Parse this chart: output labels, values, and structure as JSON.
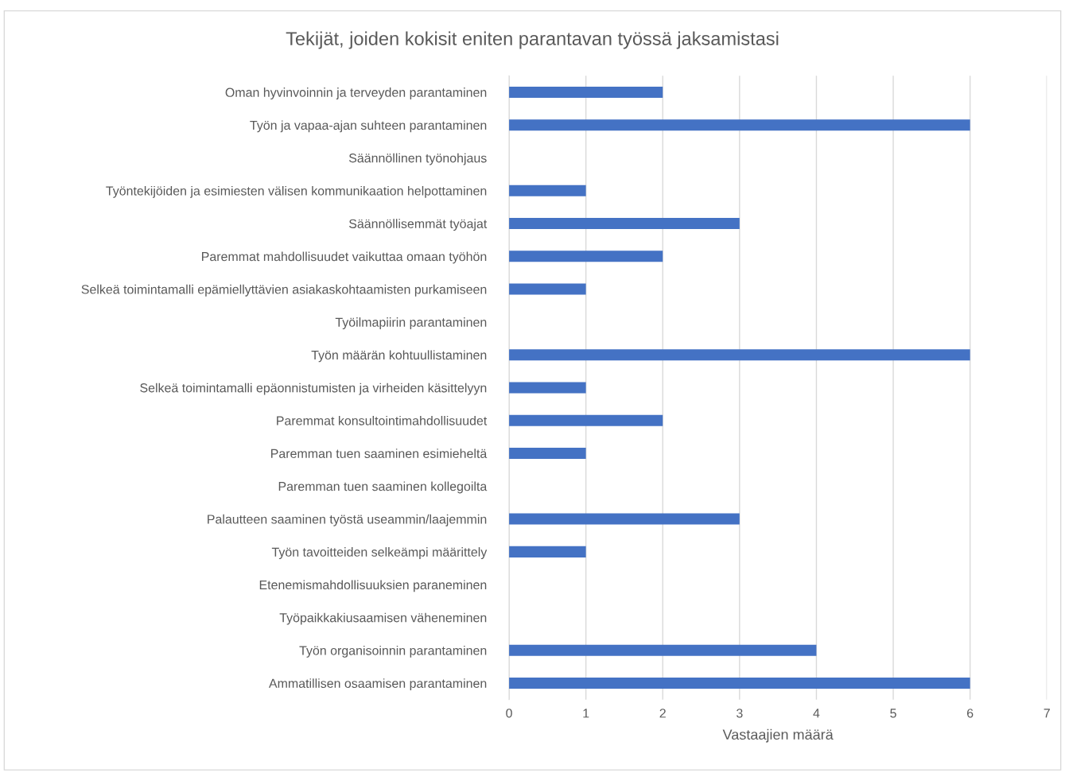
{
  "chart_data": {
    "type": "bar",
    "orientation": "horizontal",
    "title": "Tekijät, joiden kokisit eniten parantavan työssä jaksamistasi",
    "xlabel": "Vastaajien määrä",
    "categories": [
      "Oman hyvinvoinnin ja terveyden parantaminen",
      "Työn ja vapaa-ajan suhteen parantaminen",
      "Säännöllinen työnohjaus",
      "Työntekijöiden ja esimiesten välisen kommunikaation helpottaminen",
      "Säännöllisemmät työajat",
      "Paremmat mahdollisuudet vaikuttaa omaan työhön",
      "Selkeä toimintamalli epämiellyttävien asiakaskohtaamisten purkamiseen",
      "Työilmapiirin parantaminen",
      "Työn määrän kohtuullistaminen",
      "Selkeä toimintamalli epäonnistumisten ja virheiden käsittelyyn",
      "Paremmat konsultointimahdollisuudet",
      "Paremman tuen saaminen esimieheltä",
      "Paremman tuen saaminen kollegoilta",
      "Palautteen saaminen työstä useammin/laajemmin",
      "Työn tavoitteiden selkeämpi määrittely",
      "Etenemismahdollisuuksien paraneminen",
      "Työpaikkakiusaamisen väheneminen",
      "Työn organisoinnin parantaminen",
      "Ammatillisen osaamisen parantaminen"
    ],
    "values": [
      2,
      6,
      0,
      1,
      3,
      2,
      1,
      0,
      6,
      1,
      2,
      1,
      0,
      3,
      1,
      0,
      0,
      4,
      6
    ],
    "color": "#4472c4",
    "xlim": [
      0,
      7
    ],
    "xticks": [
      0,
      1,
      2,
      3,
      4,
      5,
      6,
      7
    ],
    "grid": "x"
  }
}
